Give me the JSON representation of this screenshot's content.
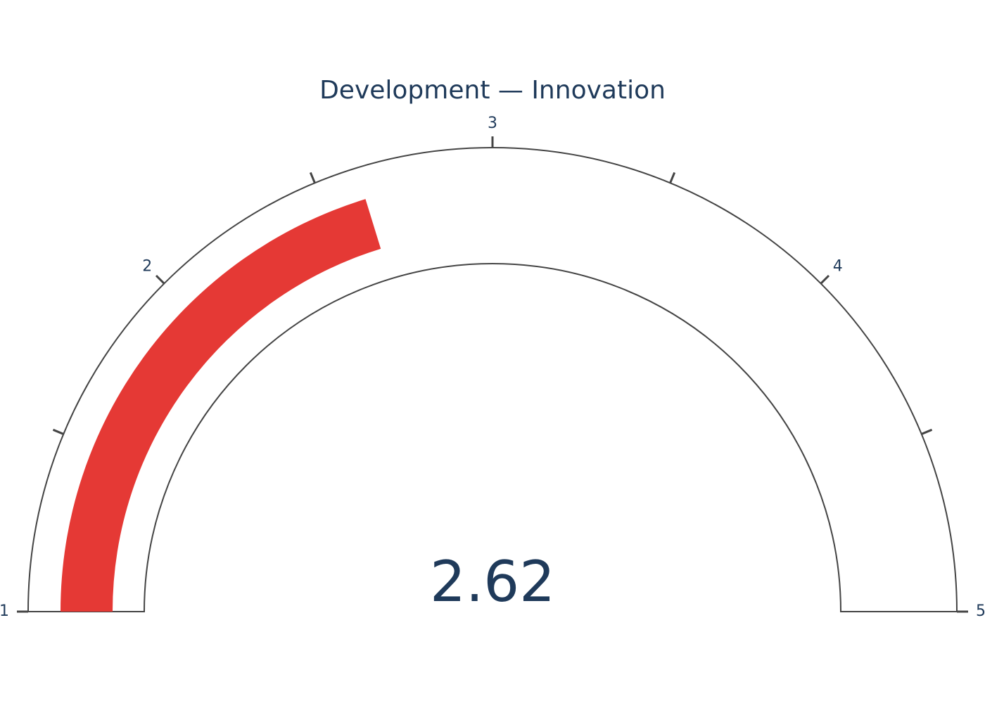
{
  "chart_data": {
    "type": "gauge",
    "title": "Development — Innovation",
    "value": 2.62,
    "value_label": "2.62",
    "range": [
      1,
      5
    ],
    "major_ticks": [
      1,
      2,
      3,
      4,
      5
    ],
    "tick_labels": [
      "1",
      "2",
      "3",
      "4",
      "5"
    ],
    "minor_ticks": [
      1.5,
      2.5,
      3.5,
      4.5
    ],
    "colors": {
      "bar": "#e53935",
      "text": "#1f3a5a",
      "outline": "#444444",
      "background": "#ffffff"
    }
  }
}
